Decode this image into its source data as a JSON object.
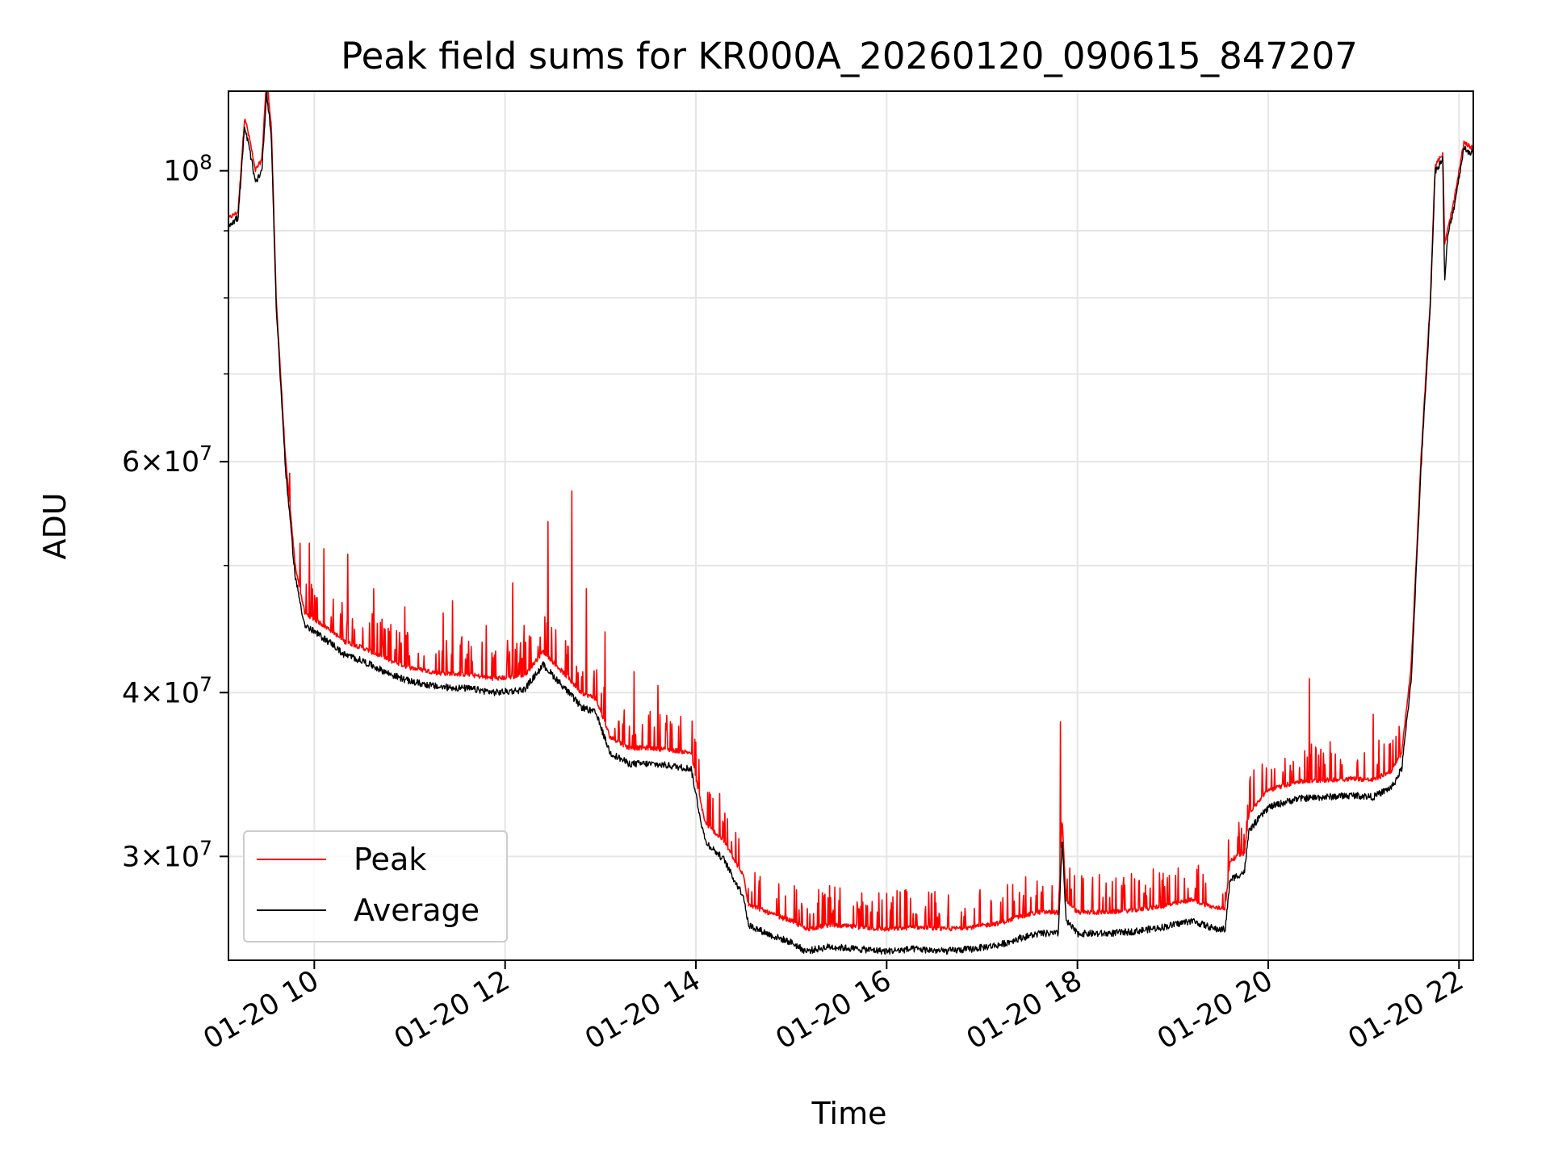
{
  "chart_data": {
    "type": "line",
    "title": "Peak field sums for KR000A_20260120_090615_847207",
    "xlabel": "Time",
    "ylabel": "ADU",
    "yscale": "log",
    "grid": true,
    "legend_position": "lower-left",
    "xlim": [
      9.1,
      22.15
    ],
    "ylim": [
      25000000,
      115000000
    ],
    "x_unit": "hours on 2026-01-20",
    "x_ticks": [
      {
        "value": 10,
        "label": "01-20 10"
      },
      {
        "value": 12,
        "label": "01-20 12"
      },
      {
        "value": 14,
        "label": "01-20 14"
      },
      {
        "value": 16,
        "label": "01-20 16"
      },
      {
        "value": 18,
        "label": "01-20 18"
      },
      {
        "value": 20,
        "label": "01-20 20"
      },
      {
        "value": 22,
        "label": "01-20 22"
      }
    ],
    "y_ticks": [
      {
        "value": 30000000,
        "mantissa": "3",
        "exponent": "7"
      },
      {
        "value": 40000000,
        "mantissa": "4",
        "exponent": "7"
      },
      {
        "value": 60000000,
        "mantissa": "6",
        "exponent": "7"
      },
      {
        "value": 100000000,
        "mantissa": "10",
        "exponent": "8"
      }
    ],
    "y_minor_ticks": [
      50000000,
      70000000,
      80000000,
      90000000
    ],
    "series": [
      {
        "name": "Peak",
        "color": "#ff0000",
        "x": [
          9.1,
          9.2,
          9.27,
          9.33,
          9.38,
          9.45,
          9.5,
          9.55,
          9.6,
          9.7,
          9.8,
          9.9,
          10.0,
          10.2,
          10.3,
          10.5,
          10.8,
          11.0,
          11.3,
          11.6,
          11.9,
          12.2,
          12.4,
          12.6,
          12.8,
          12.95,
          13.1,
          13.3,
          13.5,
          13.7,
          13.95,
          14.05,
          14.1,
          14.3,
          14.4,
          14.5,
          14.55,
          14.8,
          15.0,
          15.15,
          15.4,
          15.7,
          16.0,
          16.3,
          16.6,
          16.9,
          17.2,
          17.4,
          17.6,
          17.8,
          17.84,
          17.88,
          18.0,
          18.3,
          18.6,
          18.9,
          19.2,
          19.45,
          19.55,
          19.6,
          19.75,
          19.8,
          20.0,
          20.3,
          20.6,
          20.9,
          21.1,
          21.3,
          21.4,
          21.5,
          21.6,
          21.7,
          21.75,
          21.83,
          21.85,
          21.88,
          21.95,
          22.05,
          22.15
        ],
        "y": [
          92000000,
          93000000,
          110000000,
          105000000,
          100000000,
          102000000,
          118000000,
          108000000,
          80000000,
          60000000,
          50000000,
          46000000,
          45500000,
          44500000,
          43800000,
          43300000,
          42300000,
          41800000,
          41400000,
          41300000,
          41000000,
          41200000,
          43000000,
          41500000,
          40000000,
          39600000,
          37000000,
          36300000,
          36300000,
          36200000,
          36000000,
          33000000,
          31800000,
          30800000,
          29800000,
          29000000,
          27600000,
          27100000,
          26800000,
          26400000,
          26600000,
          26500000,
          26400000,
          26500000,
          26400000,
          26500000,
          26700000,
          27000000,
          27200000,
          27200000,
          32000000,
          27800000,
          27200000,
          27200000,
          27300000,
          27500000,
          27800000,
          27400000,
          27400000,
          29800000,
          30200000,
          32400000,
          33700000,
          34200000,
          34300000,
          34400000,
          34300000,
          34900000,
          36000000,
          42000000,
          60000000,
          80000000,
          101000000,
          103000000,
          88000000,
          90000000,
          95000000,
          105000000,
          104000000
        ],
        "spikes": [
          {
            "x": 9.85,
            "y": 52000000
          },
          {
            "x": 9.95,
            "y": 52000000
          },
          {
            "x": 10.1,
            "y": 51500000
          },
          {
            "x": 10.35,
            "y": 51000000
          },
          {
            "x": 10.62,
            "y": 48000000
          },
          {
            "x": 10.95,
            "y": 46500000
          },
          {
            "x": 11.35,
            "y": 46000000
          },
          {
            "x": 11.45,
            "y": 47000000
          },
          {
            "x": 11.8,
            "y": 45000000
          },
          {
            "x": 12.08,
            "y": 48500000
          },
          {
            "x": 12.2,
            "y": 45000000
          },
          {
            "x": 12.45,
            "y": 54000000
          },
          {
            "x": 12.7,
            "y": 57000000
          },
          {
            "x": 12.85,
            "y": 48000000
          },
          {
            "x": 13.05,
            "y": 44500000
          },
          {
            "x": 13.35,
            "y": 41500000
          },
          {
            "x": 13.6,
            "y": 40500000
          },
          {
            "x": 14.25,
            "y": 33500000
          },
          {
            "x": 15.4,
            "y": 28500000
          },
          {
            "x": 16.2,
            "y": 28300000
          },
          {
            "x": 17.82,
            "y": 38000000
          },
          {
            "x": 20.43,
            "y": 41000000
          },
          {
            "x": 21.1,
            "y": 38500000
          }
        ]
      },
      {
        "name": "Average",
        "color": "#000000",
        "x": [
          9.1,
          9.2,
          9.27,
          9.33,
          9.38,
          9.45,
          9.5,
          9.55,
          9.6,
          9.7,
          9.8,
          9.9,
          10.0,
          10.2,
          10.3,
          10.5,
          10.8,
          11.0,
          11.3,
          11.6,
          11.9,
          12.2,
          12.4,
          12.6,
          12.8,
          12.95,
          13.1,
          13.3,
          13.5,
          13.7,
          13.95,
          14.05,
          14.1,
          14.3,
          14.4,
          14.5,
          14.55,
          14.8,
          15.0,
          15.15,
          15.4,
          15.7,
          16.0,
          16.3,
          16.6,
          16.9,
          17.2,
          17.4,
          17.6,
          17.8,
          17.84,
          17.88,
          18.0,
          18.3,
          18.6,
          18.9,
          19.2,
          19.45,
          19.55,
          19.6,
          19.75,
          19.8,
          20.0,
          20.3,
          20.6,
          20.9,
          21.1,
          21.3,
          21.4,
          21.5,
          21.6,
          21.7,
          21.75,
          21.83,
          21.85,
          21.88,
          21.95,
          22.05,
          22.15
        ],
        "y": [
          91000000,
          92000000,
          108000000,
          103000000,
          98000000,
          100000000,
          115000000,
          106000000,
          79000000,
          59000000,
          49000000,
          45000000,
          44500000,
          43500000,
          42800000,
          42300000,
          41300000,
          40800000,
          40400000,
          40300000,
          40000000,
          40200000,
          42000000,
          40500000,
          39000000,
          38600000,
          36000000,
          35300000,
          35300000,
          35200000,
          35000000,
          32000000,
          30800000,
          29800000,
          28800000,
          28000000,
          26600000,
          26100000,
          25800000,
          25400000,
          25600000,
          25500000,
          25400000,
          25500000,
          25400000,
          25500000,
          25700000,
          26000000,
          26200000,
          26200000,
          31000000,
          26800000,
          26200000,
          26200000,
          26300000,
          26500000,
          26800000,
          26400000,
          26400000,
          28800000,
          29200000,
          31400000,
          32700000,
          33200000,
          33300000,
          33400000,
          33300000,
          33900000,
          35000000,
          41000000,
          59000000,
          79000000,
          100000000,
          102000000,
          82000000,
          89000000,
          94000000,
          104000000,
          103000000
        ]
      }
    ]
  }
}
